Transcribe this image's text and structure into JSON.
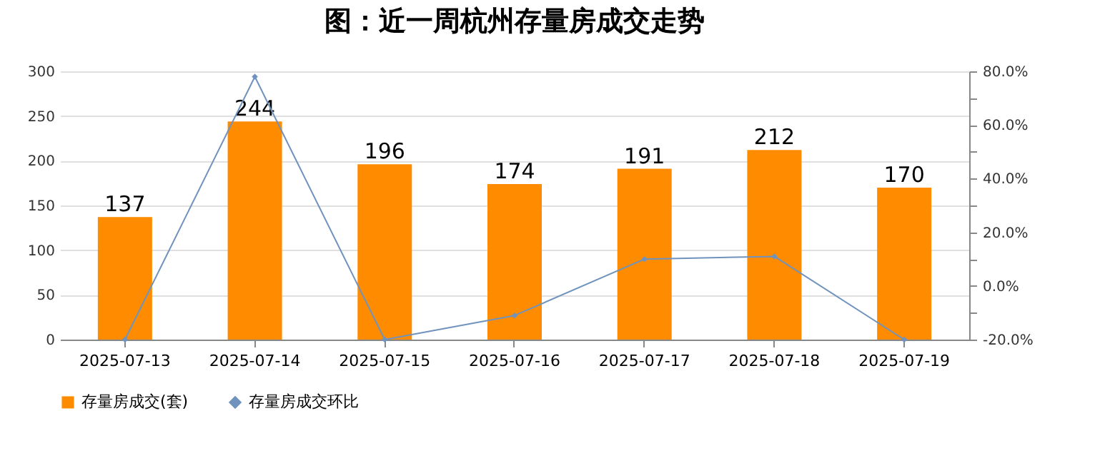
{
  "chart_data": {
    "type": "bar",
    "title": "图：近一周杭州存量房成交走势",
    "categories": [
      "2025-07-13",
      "2025-07-14",
      "2025-07-15",
      "2025-07-16",
      "2025-07-17",
      "2025-07-18",
      "2025-07-19"
    ],
    "series": [
      {
        "name": "存量房成交(套)",
        "color": "#ff8c00",
        "values": [
          137,
          244,
          196,
          174,
          191,
          212,
          170
        ],
        "value_labels": [
          "137",
          "244",
          "196",
          "174",
          "191",
          "212",
          "170"
        ]
      },
      {
        "name": "存量房成交环比",
        "type": "line",
        "axis": "y2",
        "color": "#6f93bd",
        "values": [
          -20,
          78,
          -20,
          -11,
          10,
          11,
          -20
        ]
      }
    ],
    "ylim": [
      0,
      300
    ],
    "yticks": [
      0,
      50,
      100,
      150,
      200,
      250,
      300
    ],
    "y2lim": [
      -20,
      80
    ],
    "y2ticks": [
      {
        "value": -20,
        "label": "-20.0%"
      },
      {
        "value": -10,
        "label": null
      },
      {
        "value": 0,
        "label": "0.0%"
      },
      {
        "value": 10,
        "label": null
      },
      {
        "value": 20,
        "label": "20.0%"
      },
      {
        "value": 30,
        "label": null
      },
      {
        "value": 40,
        "label": "40.0%"
      },
      {
        "value": 50,
        "label": null
      },
      {
        "value": 60,
        "label": "60.0%"
      },
      {
        "value": 70,
        "label": null
      },
      {
        "value": 80,
        "label": "80.0%"
      }
    ],
    "grid": "y",
    "legend": "bottom",
    "marker": "diamond"
  }
}
